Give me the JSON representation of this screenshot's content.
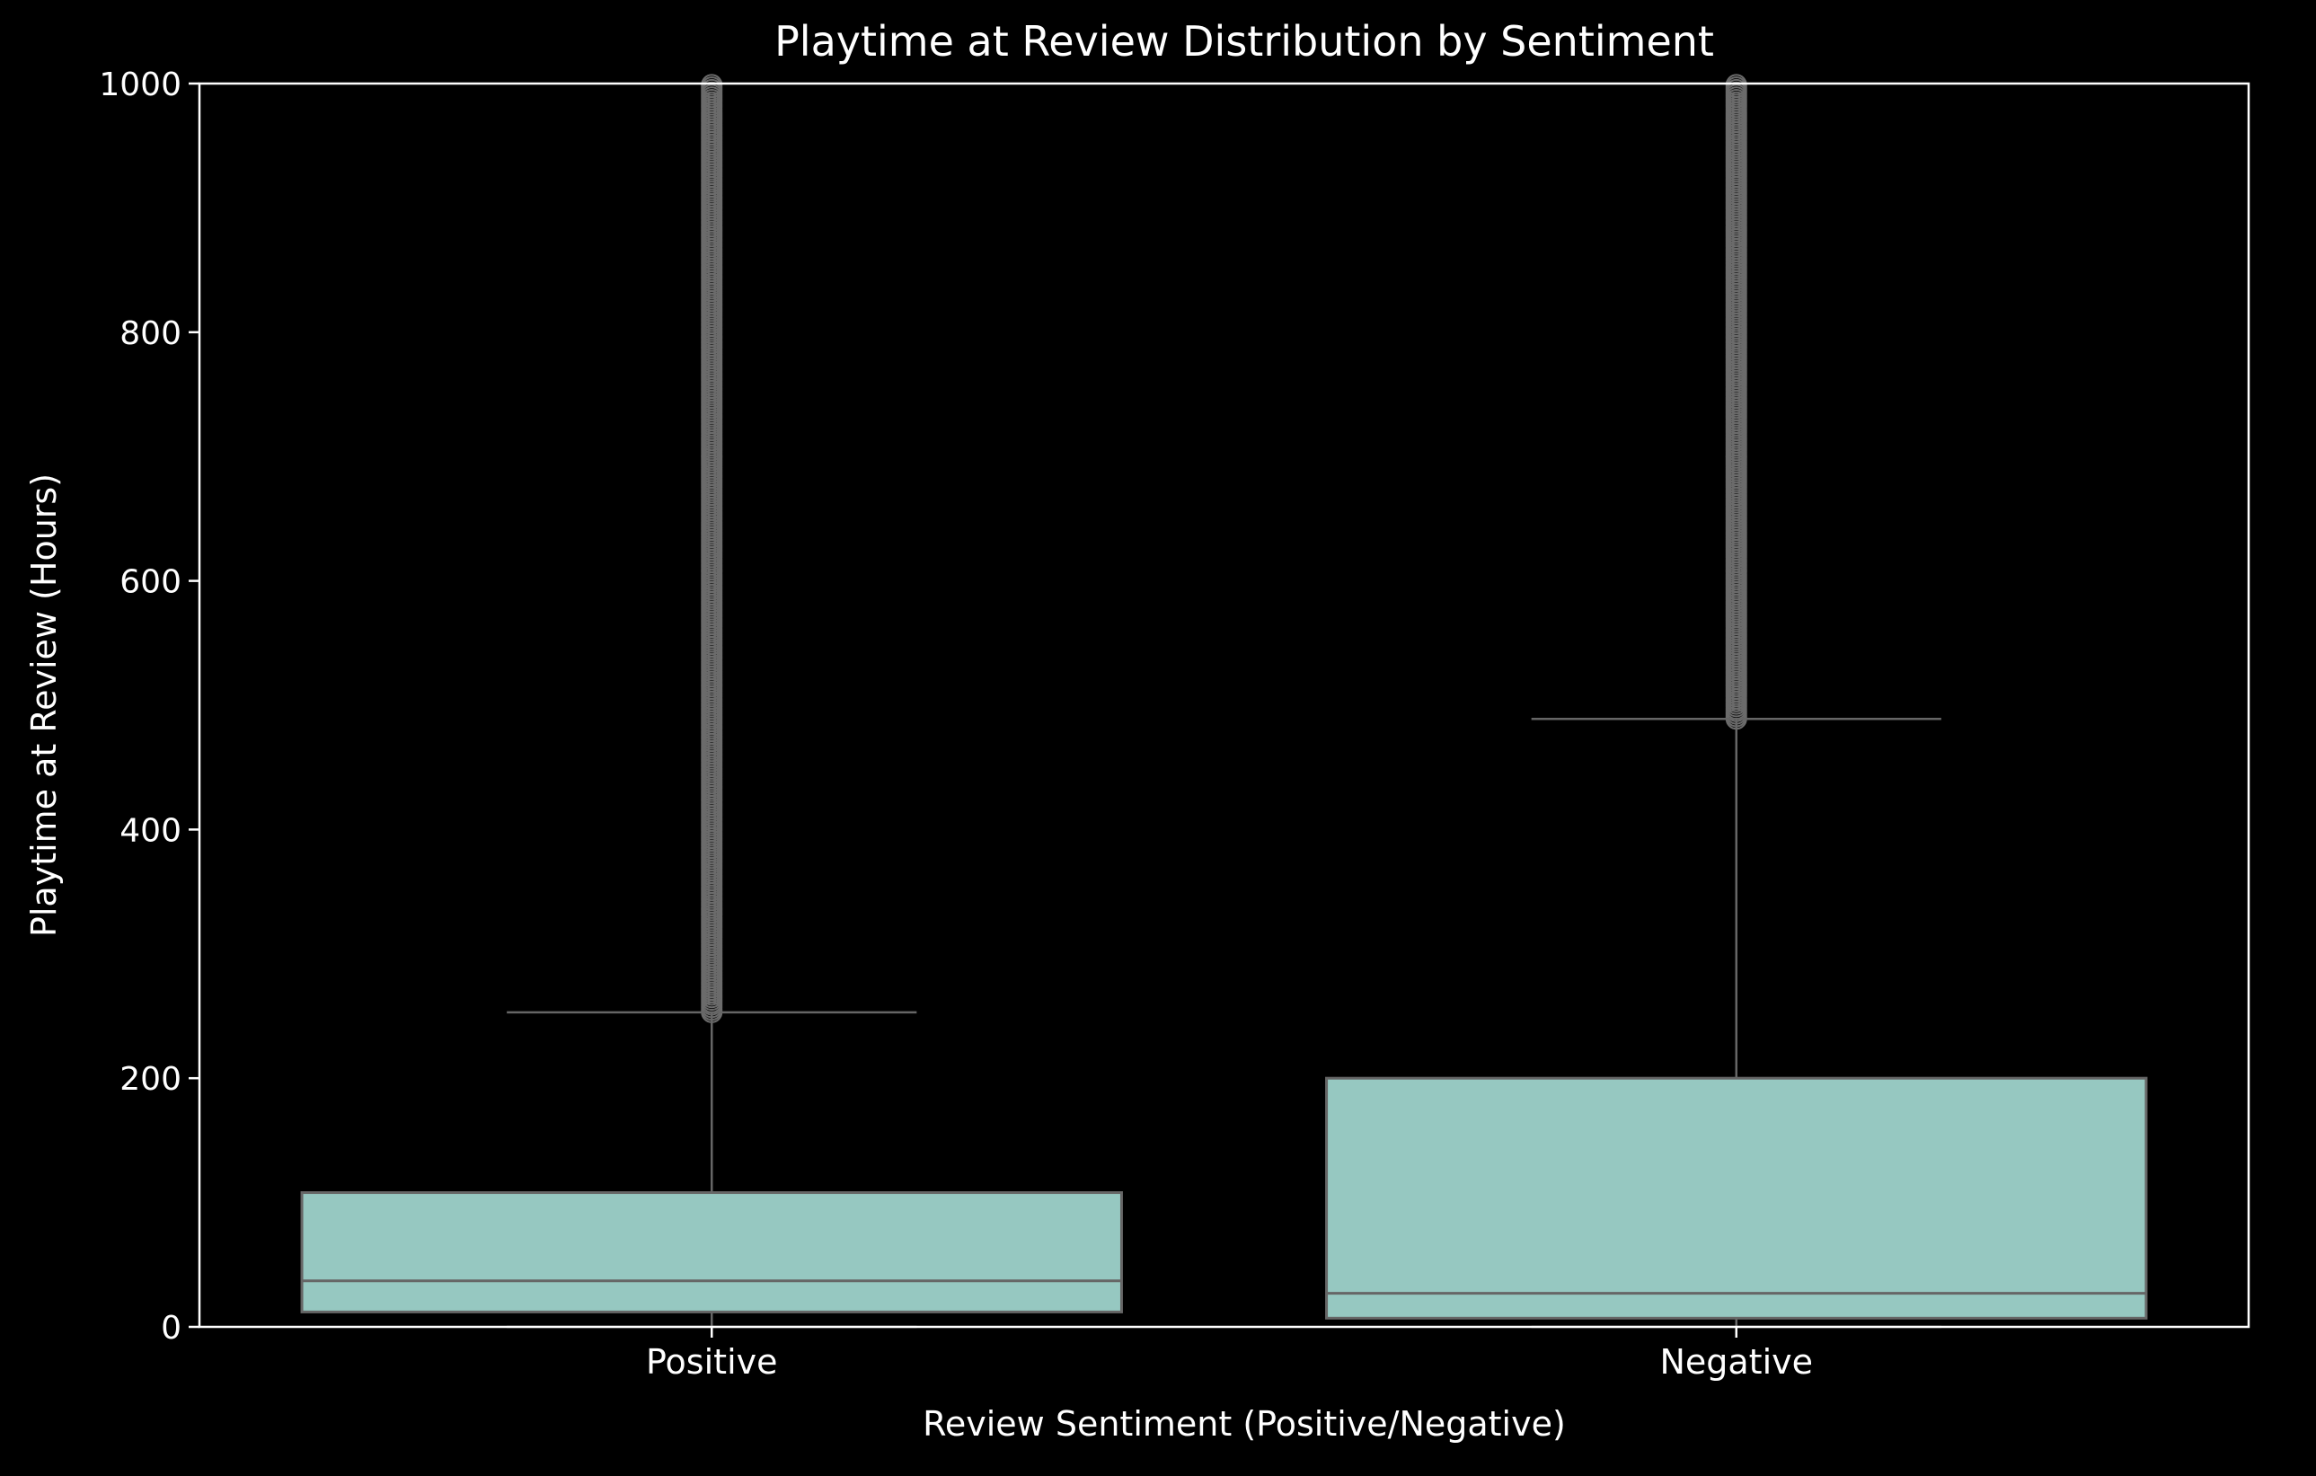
{
  "chart_data": {
    "type": "box",
    "title": "Playtime at Review Distribution by Sentiment",
    "xlabel": "Review Sentiment (Positive/Negative)",
    "ylabel": "Playtime at Review (Hours)",
    "ylim": [
      0,
      1000
    ],
    "yticks": [
      0,
      200,
      400,
      600,
      800,
      1000
    ],
    "categories": [
      "Positive",
      "Negative"
    ],
    "boxes": [
      {
        "category": "Positive",
        "whisker_low": 0,
        "q1": 12,
        "median": 37,
        "q3": 108,
        "whisker_high": 253,
        "outlier_range": [
          253,
          1000
        ]
      },
      {
        "category": "Negative",
        "whisker_low": 0,
        "q1": 7,
        "median": 27,
        "q3": 200,
        "whisker_high": 489,
        "outlier_range": [
          489,
          1000
        ]
      }
    ],
    "grid": false,
    "legend": "none",
    "colors": {
      "background": "#000000",
      "box_fill": "#96c8c1",
      "box_edge": "#666666",
      "outlier": "#6b6b6b",
      "text": "#ffffff",
      "axes": "#ffffff"
    }
  }
}
